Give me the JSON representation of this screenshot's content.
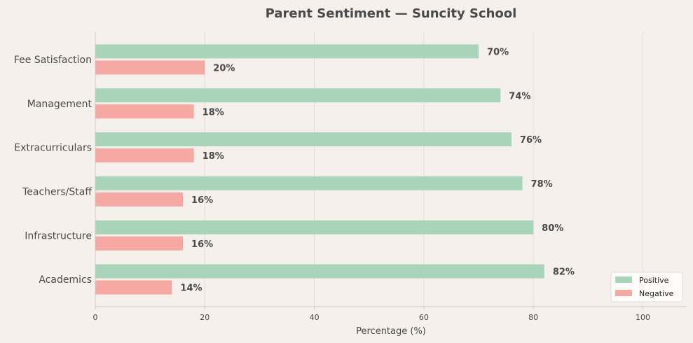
{
  "chart_data": {
    "type": "bar",
    "orientation": "horizontal",
    "title": "Parent Sentiment — Suncity School",
    "xlabel": "Percentage (%)",
    "ylabel": "",
    "categories": [
      "Fee Satisfaction",
      "Management",
      "Extracurriculars",
      "Teachers/Staff",
      "Infrastructure",
      "Academics"
    ],
    "series": [
      {
        "name": "Positive",
        "color": "#a8d5ba",
        "values": [
          70,
          74,
          76,
          78,
          80,
          82
        ]
      },
      {
        "name": "Negative",
        "color": "#f6a8a3",
        "values": [
          20,
          18,
          18,
          16,
          16,
          14
        ]
      }
    ],
    "xlim": [
      0,
      108
    ],
    "xticks": [
      0,
      20,
      40,
      60,
      80,
      100
    ],
    "grid": true,
    "legend": "bottom-right",
    "data_label_suffix": "%"
  }
}
